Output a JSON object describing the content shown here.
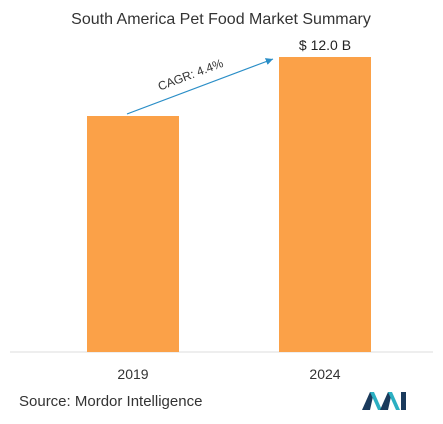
{
  "chart_data": {
    "type": "bar",
    "title": "South America Pet Food Market Summary",
    "categories": [
      "2019",
      "2024"
    ],
    "values": [
      9.6,
      12.0
    ],
    "data_labels": [
      "",
      "$ 12.0 B"
    ],
    "annotation": "CAGR: 4.4%",
    "ylim": [
      0,
      12.0
    ],
    "grid": false,
    "legend": "none",
    "colors": {
      "bar": "#FBA148",
      "arrow": "#2A8EC7",
      "baseline": "#dddddd"
    }
  },
  "footer": {
    "source": "Source: Mordor Intelligence"
  },
  "logo": {
    "icon": "mordor-intelligence-logo-icon",
    "colors": [
      "#1A3A5C",
      "#2BAFC2"
    ]
  }
}
